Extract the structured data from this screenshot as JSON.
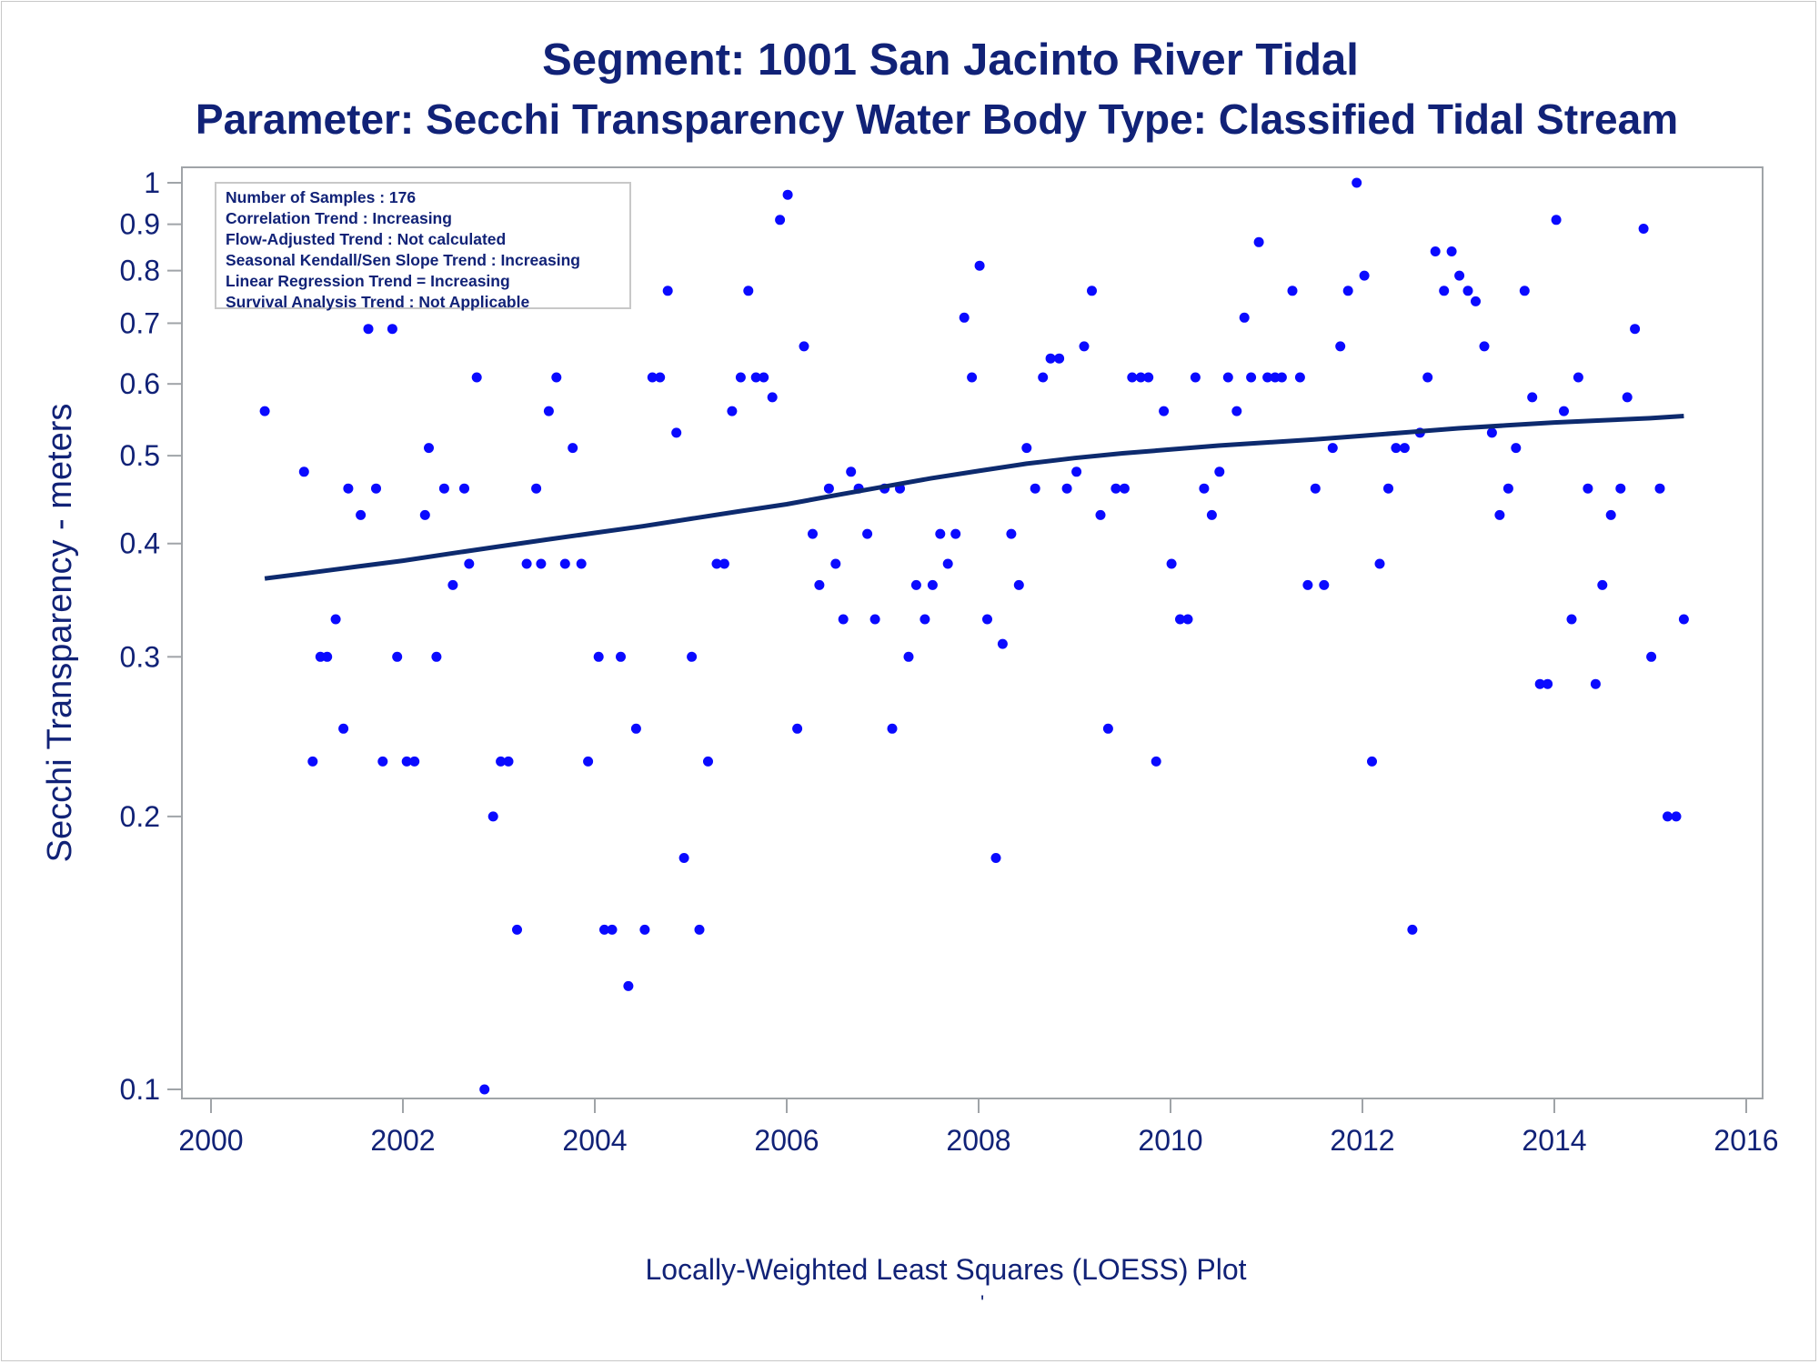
{
  "titles": {
    "line1": "Segment: 1001  San Jacinto River Tidal",
    "line2": "Parameter: Secchi Transparency   Water Body Type: Classified Tidal Stream"
  },
  "stats_box": [
    "Number of Samples : 176",
    "Correlation Trend : Increasing",
    "Flow-Adjusted Trend : Not calculated",
    "Seasonal Kendall/Sen Slope Trend : Increasing",
    "Linear Regression Trend = Increasing",
    "Survival Analysis Trend : Not Applicable"
  ],
  "footnote": "Locally-Weighted Least Squares (LOESS) Plot",
  "footnote2": "'",
  "colors": {
    "text": "#112277",
    "points": "#0a0aff",
    "loess_line": "#0d2a6e",
    "frame": "#a0a4a8"
  },
  "chart_data": {
    "type": "scatter",
    "xlabel": "",
    "ylabel": "Secchi Transparency - meters",
    "xlim": [
      2000,
      2016
    ],
    "ylim": [
      0.1,
      1
    ],
    "y_scale": "log",
    "x_ticks": [
      2000,
      2002,
      2004,
      2006,
      2008,
      2010,
      2012,
      2014,
      2016
    ],
    "y_ticks": [
      0.1,
      0.2,
      0.3,
      0.4,
      0.5,
      0.6,
      0.7,
      0.8,
      0.9,
      1
    ],
    "y_tick_labels": [
      "0.1",
      "0.2",
      "0.3",
      "0.4",
      "0.5",
      "0.6",
      "0.7",
      "0.8",
      "0.9",
      "1"
    ],
    "grid": false,
    "points": [
      [
        2000.56,
        0.56
      ],
      [
        2000.89,
        0.98
      ],
      [
        2000.97,
        0.48
      ],
      [
        2001.06,
        0.23
      ],
      [
        2001.14,
        0.3
      ],
      [
        2001.21,
        0.3
      ],
      [
        2001.3,
        0.33
      ],
      [
        2001.38,
        0.25
      ],
      [
        2001.43,
        0.46
      ],
      [
        2001.56,
        0.43
      ],
      [
        2001.64,
        0.69
      ],
      [
        2001.72,
        0.46
      ],
      [
        2001.79,
        0.23
      ],
      [
        2001.89,
        0.69
      ],
      [
        2001.94,
        0.3
      ],
      [
        2002.04,
        0.23
      ],
      [
        2002.12,
        0.23
      ],
      [
        2002.23,
        0.43
      ],
      [
        2002.27,
        0.51
      ],
      [
        2002.35,
        0.3
      ],
      [
        2002.43,
        0.46
      ],
      [
        2002.52,
        0.36
      ],
      [
        2002.64,
        0.46
      ],
      [
        2002.69,
        0.38
      ],
      [
        2002.77,
        0.61
      ],
      [
        2002.85,
        0.1
      ],
      [
        2002.94,
        0.2
      ],
      [
        2003.02,
        0.23
      ],
      [
        2003.1,
        0.23
      ],
      [
        2003.19,
        0.15
      ],
      [
        2003.29,
        0.38
      ],
      [
        2003.39,
        0.46
      ],
      [
        2003.44,
        0.38
      ],
      [
        2003.52,
        0.56
      ],
      [
        2003.6,
        0.61
      ],
      [
        2003.69,
        0.38
      ],
      [
        2003.77,
        0.51
      ],
      [
        2003.86,
        0.38
      ],
      [
        2003.93,
        0.23
      ],
      [
        2004.04,
        0.3
      ],
      [
        2004.1,
        0.15
      ],
      [
        2004.18,
        0.15
      ],
      [
        2004.27,
        0.3
      ],
      [
        2004.35,
        0.13
      ],
      [
        2004.43,
        0.25
      ],
      [
        2004.52,
        0.15
      ],
      [
        2004.6,
        0.61
      ],
      [
        2004.68,
        0.61
      ],
      [
        2004.76,
        0.76
      ],
      [
        2004.85,
        0.53
      ],
      [
        2004.93,
        0.18
      ],
      [
        2005.01,
        0.3
      ],
      [
        2005.09,
        0.15
      ],
      [
        2005.18,
        0.23
      ],
      [
        2005.27,
        0.38
      ],
      [
        2005.35,
        0.38
      ],
      [
        2005.43,
        0.56
      ],
      [
        2005.52,
        0.61
      ],
      [
        2005.6,
        0.76
      ],
      [
        2005.68,
        0.61
      ],
      [
        2005.76,
        0.61
      ],
      [
        2005.85,
        0.58
      ],
      [
        2005.93,
        0.91
      ],
      [
        2006.01,
        0.97
      ],
      [
        2006.11,
        0.25
      ],
      [
        2006.18,
        0.66
      ],
      [
        2006.27,
        0.41
      ],
      [
        2006.34,
        0.36
      ],
      [
        2006.44,
        0.46
      ],
      [
        2006.51,
        0.38
      ],
      [
        2006.59,
        0.33
      ],
      [
        2006.67,
        0.48
      ],
      [
        2006.75,
        0.46
      ],
      [
        2006.84,
        0.41
      ],
      [
        2006.92,
        0.33
      ],
      [
        2007.02,
        0.46
      ],
      [
        2007.1,
        0.25
      ],
      [
        2007.18,
        0.46
      ],
      [
        2007.27,
        0.3
      ],
      [
        2007.35,
        0.36
      ],
      [
        2007.44,
        0.33
      ],
      [
        2007.52,
        0.36
      ],
      [
        2007.6,
        0.41
      ],
      [
        2007.68,
        0.38
      ],
      [
        2007.76,
        0.41
      ],
      [
        2007.85,
        0.71
      ],
      [
        2007.93,
        0.61
      ],
      [
        2008.01,
        0.81
      ],
      [
        2008.09,
        0.33
      ],
      [
        2008.18,
        0.18
      ],
      [
        2008.25,
        0.31
      ],
      [
        2008.34,
        0.41
      ],
      [
        2008.42,
        0.36
      ],
      [
        2008.5,
        0.51
      ],
      [
        2008.59,
        0.46
      ],
      [
        2008.67,
        0.61
      ],
      [
        2008.75,
        0.64
      ],
      [
        2008.84,
        0.64
      ],
      [
        2008.92,
        0.46
      ],
      [
        2009.02,
        0.48
      ],
      [
        2009.1,
        0.66
      ],
      [
        2009.18,
        0.76
      ],
      [
        2009.27,
        0.43
      ],
      [
        2009.35,
        0.25
      ],
      [
        2009.43,
        0.46
      ],
      [
        2009.52,
        0.46
      ],
      [
        2009.6,
        0.61
      ],
      [
        2009.69,
        0.61
      ],
      [
        2009.77,
        0.61
      ],
      [
        2009.85,
        0.23
      ],
      [
        2009.93,
        0.56
      ],
      [
        2010.01,
        0.38
      ],
      [
        2010.1,
        0.33
      ],
      [
        2010.18,
        0.33
      ],
      [
        2010.26,
        0.61
      ],
      [
        2010.35,
        0.46
      ],
      [
        2010.43,
        0.43
      ],
      [
        2010.51,
        0.48
      ],
      [
        2010.6,
        0.61
      ],
      [
        2010.69,
        0.56
      ],
      [
        2010.77,
        0.71
      ],
      [
        2010.84,
        0.61
      ],
      [
        2010.92,
        0.86
      ],
      [
        2011.01,
        0.61
      ],
      [
        2011.09,
        0.61
      ],
      [
        2011.16,
        0.61
      ],
      [
        2011.27,
        0.76
      ],
      [
        2011.35,
        0.61
      ],
      [
        2011.43,
        0.36
      ],
      [
        2011.51,
        0.46
      ],
      [
        2011.6,
        0.36
      ],
      [
        2011.69,
        0.51
      ],
      [
        2011.77,
        0.66
      ],
      [
        2011.85,
        0.76
      ],
      [
        2011.94,
        1.0
      ],
      [
        2012.02,
        0.79
      ],
      [
        2012.1,
        0.23
      ],
      [
        2012.18,
        0.38
      ],
      [
        2012.27,
        0.46
      ],
      [
        2012.35,
        0.51
      ],
      [
        2012.44,
        0.51
      ],
      [
        2012.52,
        0.15
      ],
      [
        2012.6,
        0.53
      ],
      [
        2012.68,
        0.61
      ],
      [
        2012.76,
        0.84
      ],
      [
        2012.85,
        0.76
      ],
      [
        2012.93,
        0.84
      ],
      [
        2013.01,
        0.79
      ],
      [
        2013.1,
        0.76
      ],
      [
        2013.18,
        0.74
      ],
      [
        2013.27,
        0.66
      ],
      [
        2013.35,
        0.53
      ],
      [
        2013.43,
        0.43
      ],
      [
        2013.52,
        0.46
      ],
      [
        2013.6,
        0.51
      ],
      [
        2013.69,
        0.76
      ],
      [
        2013.77,
        0.58
      ],
      [
        2013.85,
        0.28
      ],
      [
        2013.93,
        0.28
      ],
      [
        2014.02,
        0.91
      ],
      [
        2014.1,
        0.56
      ],
      [
        2014.18,
        0.33
      ],
      [
        2014.25,
        0.61
      ],
      [
        2014.35,
        0.46
      ],
      [
        2014.43,
        0.28
      ],
      [
        2014.5,
        0.36
      ],
      [
        2014.59,
        0.43
      ],
      [
        2014.69,
        0.46
      ],
      [
        2014.76,
        0.58
      ],
      [
        2014.84,
        0.69
      ],
      [
        2014.93,
        0.89
      ],
      [
        2015.01,
        0.3
      ],
      [
        2015.1,
        0.46
      ],
      [
        2015.18,
        0.2
      ],
      [
        2015.27,
        0.2
      ],
      [
        2015.35,
        0.33
      ]
    ],
    "loess_line": [
      [
        2000.56,
        0.366
      ],
      [
        2001.0,
        0.371
      ],
      [
        2001.5,
        0.377
      ],
      [
        2002.0,
        0.383
      ],
      [
        2002.5,
        0.39
      ],
      [
        2003.0,
        0.397
      ],
      [
        2003.5,
        0.404
      ],
      [
        2004.0,
        0.411
      ],
      [
        2004.5,
        0.418
      ],
      [
        2005.0,
        0.426
      ],
      [
        2005.5,
        0.434
      ],
      [
        2006.0,
        0.442
      ],
      [
        2006.5,
        0.452
      ],
      [
        2007.0,
        0.462
      ],
      [
        2007.5,
        0.472
      ],
      [
        2008.0,
        0.481
      ],
      [
        2008.5,
        0.49
      ],
      [
        2009.0,
        0.497
      ],
      [
        2009.5,
        0.503
      ],
      [
        2010.0,
        0.508
      ],
      [
        2010.5,
        0.513
      ],
      [
        2011.0,
        0.517
      ],
      [
        2011.5,
        0.521
      ],
      [
        2012.0,
        0.526
      ],
      [
        2012.5,
        0.531
      ],
      [
        2013.0,
        0.536
      ],
      [
        2013.5,
        0.54
      ],
      [
        2014.0,
        0.544
      ],
      [
        2014.5,
        0.547
      ],
      [
        2015.0,
        0.55
      ],
      [
        2015.35,
        0.553
      ]
    ]
  }
}
